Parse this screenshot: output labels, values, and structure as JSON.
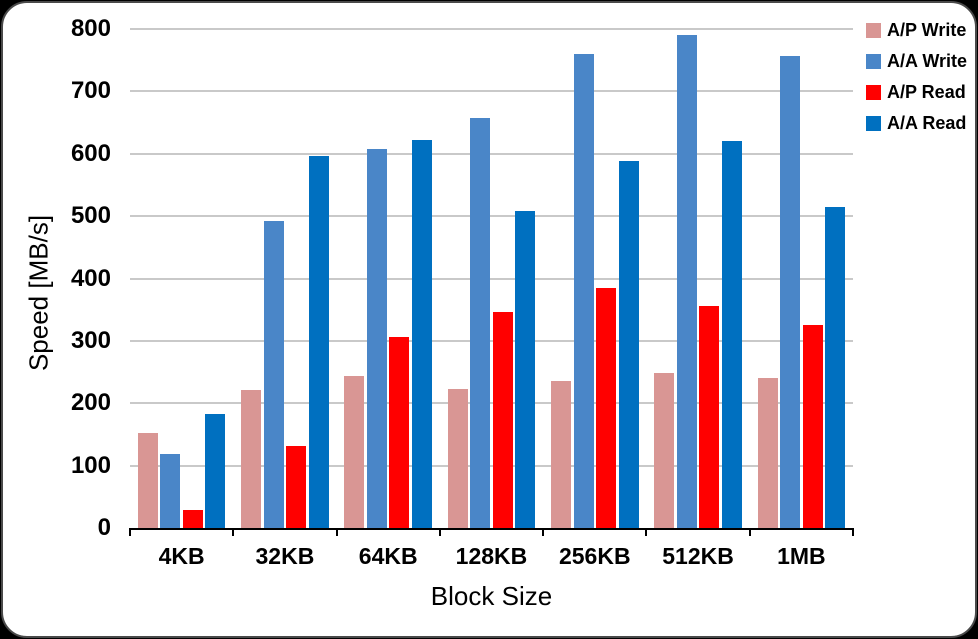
{
  "chart_data": {
    "type": "bar",
    "title": "",
    "xlabel": "Block Size",
    "ylabel": "Speed [MB/s]",
    "categories": [
      "4KB",
      "32KB",
      "64KB",
      "128KB",
      "256KB",
      "512KB",
      "1MB"
    ],
    "series": [
      {
        "name": "A/P Write",
        "color": "#D99694",
        "values": [
          153,
          222,
          243,
          223,
          235,
          248,
          241
        ]
      },
      {
        "name": "A/A Write",
        "color": "#4A86C8",
        "values": [
          119,
          493,
          608,
          657,
          760,
          791,
          756
        ]
      },
      {
        "name": "A/P Read",
        "color": "#FF0000",
        "values": [
          29,
          131,
          306,
          347,
          384,
          356,
          326
        ]
      },
      {
        "name": "A/A Read",
        "color": "#0070C0",
        "values": [
          182,
          597,
          622,
          509,
          589,
          620,
          515
        ]
      }
    ],
    "ylim": [
      0,
      800
    ],
    "yticks": [
      0,
      100,
      200,
      300,
      400,
      500,
      600,
      700,
      800
    ],
    "grid": "horizontal-on",
    "legend_position": "top-right",
    "colors": {
      "gridline": "#C9C9C9",
      "axis": "#000000",
      "plot_background": "#FFFFFF",
      "outer_background": "#000000"
    }
  }
}
